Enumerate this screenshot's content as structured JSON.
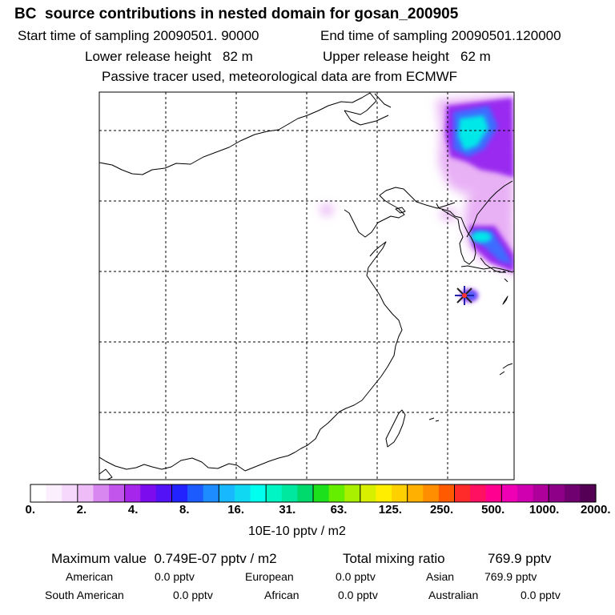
{
  "header": {
    "title": "BC  source contributions in nested domain for gosan_200905",
    "start_time": "Start time of sampling 20090501. 90000",
    "end_time": "End time of sampling 20090501.120000",
    "lower_release": "Lower release height   82 m",
    "upper_release": "Upper release height   62 m",
    "note": "Passive tracer used, meteorological data are from ECMWF"
  },
  "map": {
    "receptor_marker": "star-icon",
    "colors": {
      "plume_core": "#00e8e8",
      "plume_mid": "#3d6cff",
      "plume_outer": "#9a2cf0",
      "plume_halo": "#e8b0f5",
      "coast": "#000000",
      "grid": "#000000"
    }
  },
  "colorbar": {
    "colors": [
      "#ffffff",
      "#fbeefd",
      "#f5d8fb",
      "#eebcf7",
      "#d987f0",
      "#c255ec",
      "#a626ec",
      "#7c0cee",
      "#5311f5",
      "#2222ff",
      "#1c5cff",
      "#1c8cff",
      "#18b8ff",
      "#11d8f2",
      "#00ffee",
      "#00f5c4",
      "#00e8a0",
      "#00d96b",
      "#1ce01c",
      "#66ee00",
      "#a8f000",
      "#d8f000",
      "#ffee00",
      "#ffd000",
      "#ffb000",
      "#ff8e00",
      "#ff5a00",
      "#ff2a2a",
      "#ff1060",
      "#ff0090",
      "#f000b4",
      "#d000b0",
      "#b0009c",
      "#8f0088",
      "#700070",
      "#540054"
    ],
    "tick_labels": [
      "0.",
      "2.",
      "4.",
      "8.",
      "16.",
      "31.",
      "63.",
      "125.",
      "250.",
      "500.",
      "1000.",
      "2000."
    ],
    "unit": "10E-10 pptv / m2"
  },
  "stats": {
    "max_label": "Maximum value  0.749E-07 pptv / m2",
    "total_label": "Total mixing ratio",
    "total_value": "769.9 pptv",
    "american_label": "American",
    "american_value": "0.0 pptv",
    "european_label": "European",
    "european_value": "0.0 pptv",
    "asian_label": "Asian",
    "asian_value": "769.9 pptv",
    "south_american_label": "South American",
    "south_american_value": "0.0 pptv",
    "african_label": "African",
    "african_value": "0.0 pptv",
    "australian_label": "Australian",
    "australian_value": "0.0 pptv"
  }
}
